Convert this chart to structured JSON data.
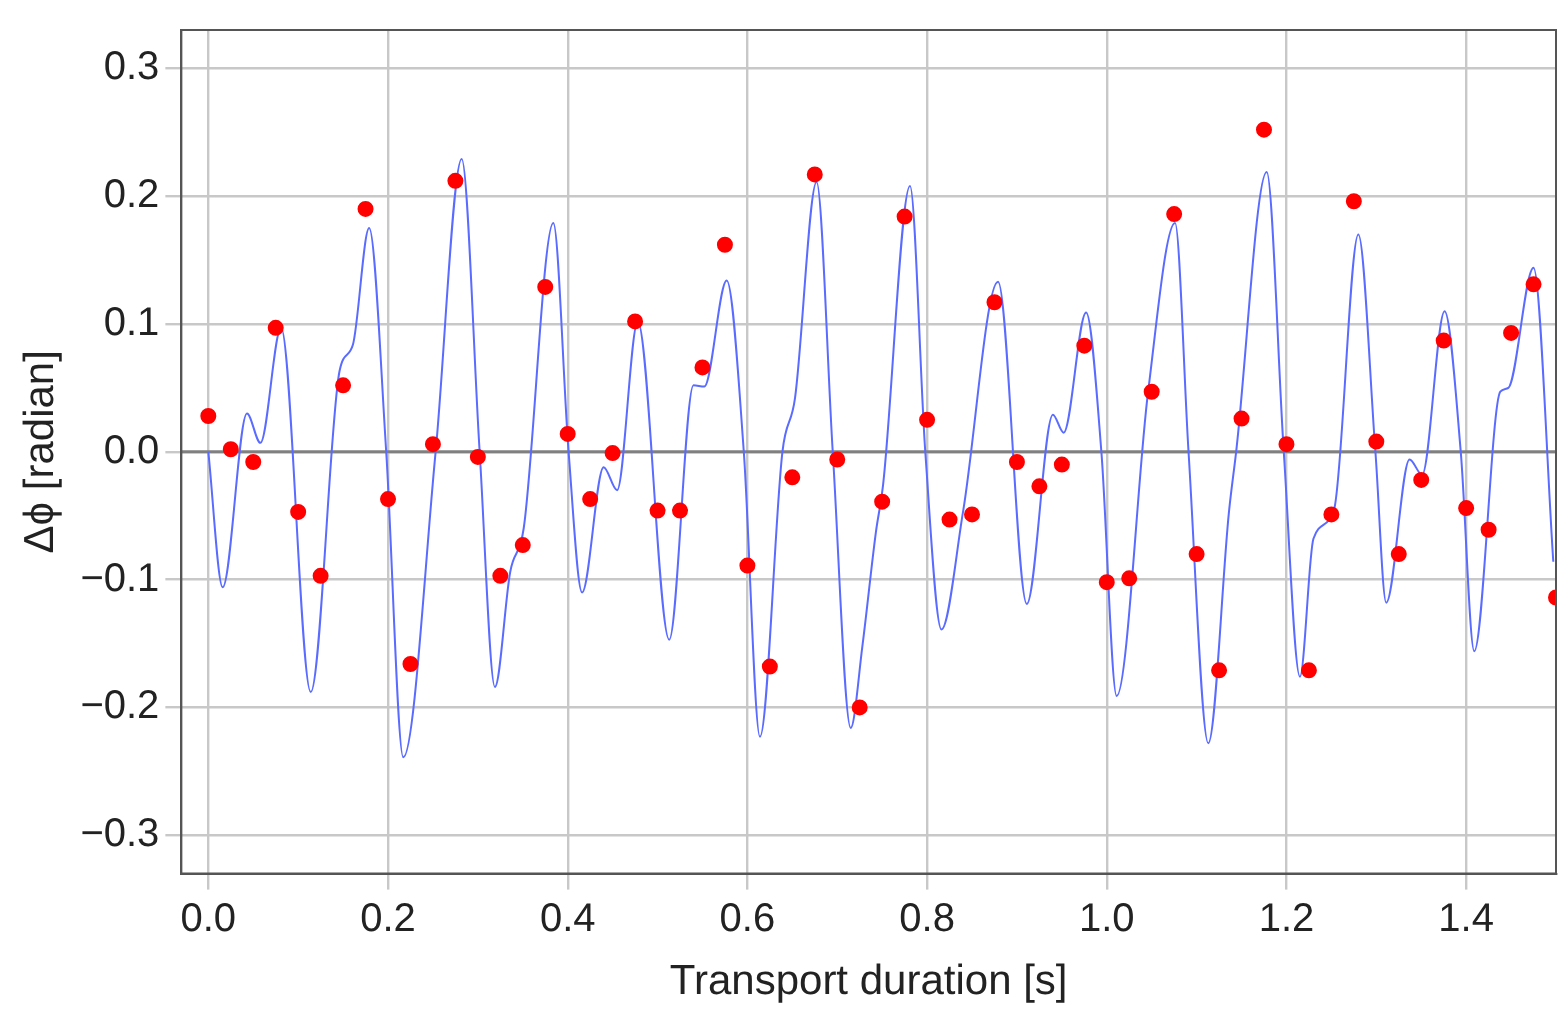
{
  "chart_data": {
    "type": "scatter",
    "xlabel": "Transport duration [s]",
    "ylabel": "Δϕ [radian]",
    "xlim": [
      -0.03,
      1.5
    ],
    "ylim": [
      -0.33,
      0.33
    ],
    "xticks": [
      {
        "value": 0,
        "label": "0.0"
      },
      {
        "value": 0.2,
        "label": "0.2"
      },
      {
        "value": 0.4,
        "label": "0.4"
      },
      {
        "value": 0.6,
        "label": "0.6"
      },
      {
        "value": 0.8,
        "label": "0.8"
      },
      {
        "value": 1,
        "label": "1.0"
      },
      {
        "value": 1.2,
        "label": "1.2"
      },
      {
        "value": 1.4,
        "label": "1.4"
      }
    ],
    "yticks": [
      {
        "value": -0.3,
        "label": "−0.3"
      },
      {
        "value": -0.2,
        "label": "−0.2"
      },
      {
        "value": -0.1,
        "label": "−0.1"
      },
      {
        "value": 0,
        "label": "0.0"
      },
      {
        "value": 0.1,
        "label": "0.1"
      },
      {
        "value": 0.2,
        "label": "0.2"
      },
      {
        "value": 0.3,
        "label": "0.3"
      }
    ],
    "grid": true,
    "legend": false,
    "ref_lines": [
      {
        "axis": "y",
        "value": 0,
        "color": "#808080"
      }
    ],
    "series": [
      {
        "type": "line",
        "color": "#5a6bff",
        "line_style": "solid",
        "marker": "none",
        "x": [
          0,
          0.016,
          0.043,
          0.058,
          0.081,
          0.114,
          0.146,
          0.161,
          0.179,
          0.198,
          0.217,
          0.253,
          0.282,
          0.302,
          0.319,
          0.336,
          0.351,
          0.384,
          0.401,
          0.416,
          0.44,
          0.455,
          0.478,
          0.513,
          0.54,
          0.552,
          0.577,
          0.596,
          0.614,
          0.639,
          0.653,
          0.677,
          0.695,
          0.715,
          0.728,
          0.743,
          0.751,
          0.781,
          0.798,
          0.816,
          0.84,
          0.879,
          0.911,
          0.94,
          0.952,
          0.977,
          0.994,
          1.011,
          1.046,
          1.076,
          1.091,
          1.113,
          1.136,
          1.144,
          1.178,
          1.197,
          1.215,
          1.23,
          1.253,
          1.28,
          1.299,
          1.311,
          1.337,
          1.351,
          1.376,
          1.394,
          1.409,
          1.438,
          1.447,
          1.475,
          1.497
        ],
        "values": [
          0,
          -0.106,
          0.03,
          0.007,
          0.097,
          -0.188,
          0.063,
          0.084,
          0.175,
          0,
          -0.239,
          0,
          0.229,
          0,
          -0.184,
          -0.094,
          -0.06,
          0.179,
          0,
          -0.11,
          -0.012,
          -0.03,
          0.102,
          -0.147,
          0.052,
          0.051,
          0.134,
          0,
          -0.223,
          0,
          0.042,
          0.211,
          0,
          -0.216,
          -0.152,
          -0.063,
          -0.026,
          0.208,
          0,
          -0.139,
          -0.047,
          0.133,
          -0.119,
          0.029,
          0.015,
          0.109,
          0,
          -0.191,
          0.047,
          0.179,
          0,
          -0.228,
          -0.047,
          0,
          0.219,
          0,
          -0.176,
          -0.068,
          -0.045,
          0.17,
          0,
          -0.118,
          -0.006,
          -0.018,
          0.11,
          0,
          -0.156,
          0.047,
          0.05,
          0.144,
          -0.086
        ]
      },
      {
        "type": "scatter",
        "color": "#ff0000",
        "marker": "circle",
        "x": [
          0,
          0.025,
          0.05,
          0.075,
          0.1,
          0.125,
          0.15,
          0.175,
          0.2,
          0.225,
          0.25,
          0.275,
          0.3,
          0.325,
          0.35,
          0.375,
          0.4,
          0.425,
          0.45,
          0.475,
          0.5,
          0.525,
          0.55,
          0.575,
          0.6,
          0.625,
          0.65,
          0.675,
          0.7,
          0.725,
          0.75,
          0.775,
          0.8,
          0.825,
          0.85,
          0.875,
          0.9,
          0.925,
          0.95,
          0.975,
          1,
          1.025,
          1.05,
          1.075,
          1.1,
          1.125,
          1.15,
          1.175,
          1.2,
          1.225,
          1.25,
          1.275,
          1.3,
          1.325,
          1.35,
          1.375,
          1.4,
          1.425,
          1.45,
          1.475,
          1.5
        ],
        "values": [
          0.028,
          0.002,
          -0.008,
          0.097,
          -0.047,
          -0.097,
          0.052,
          0.19,
          -0.037,
          -0.166,
          0.006,
          0.212,
          -0.004,
          -0.097,
          -0.073,
          0.129,
          0.014,
          -0.037,
          -0.001,
          0.102,
          -0.046,
          -0.046,
          0.066,
          0.162,
          -0.089,
          -0.168,
          -0.02,
          0.217,
          -0.006,
          -0.2,
          -0.039,
          0.184,
          0.025,
          -0.053,
          -0.049,
          0.117,
          -0.008,
          -0.027,
          -0.01,
          0.083,
          -0.102,
          -0.099,
          0.047,
          0.186,
          -0.08,
          -0.171,
          0.026,
          0.252,
          0.006,
          -0.171,
          -0.049,
          0.196,
          0.008,
          -0.08,
          -0.022,
          0.087,
          -0.044,
          -0.061,
          0.093,
          0.131,
          -0.114
        ]
      }
    ]
  }
}
